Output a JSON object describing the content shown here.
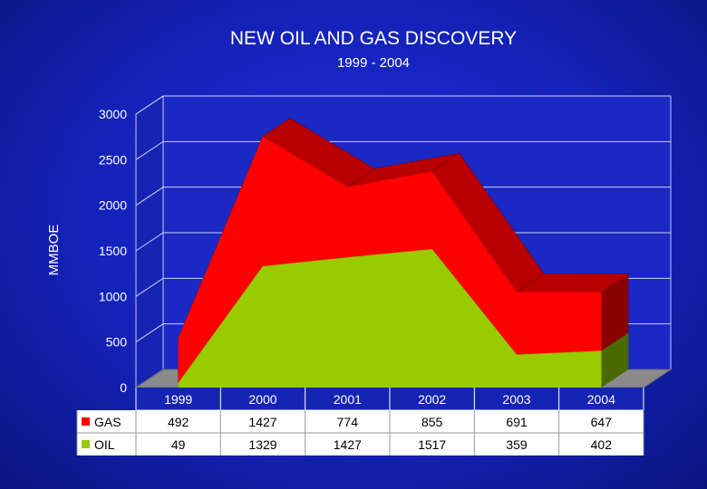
{
  "chart_data": {
    "type": "area",
    "title": "NEW OIL AND GAS DISCOVERY",
    "subtitle": "1999 - 2004",
    "ylabel": "MMBOE",
    "ylim": [
      0,
      3000
    ],
    "yticks": [
      "0",
      "500",
      "1000",
      "1500",
      "2000",
      "2500",
      "3000"
    ],
    "categories": [
      "1999",
      "2000",
      "2001",
      "2002",
      "2003",
      "2004"
    ],
    "stacked": true,
    "grid": true,
    "series": [
      {
        "name": "GAS",
        "values": [
          492,
          1427,
          774,
          855,
          691,
          647
        ],
        "color": "#ff0000",
        "label": "GAS"
      },
      {
        "name": "OIL",
        "values": [
          49,
          1329,
          1427,
          1517,
          359,
          402
        ],
        "color": "#99cc00",
        "label": "OIL"
      }
    ],
    "data_table": true
  },
  "colors": {
    "background": "#1422b8",
    "gas": "#ff0000",
    "gas_dark": "#b80000",
    "oil": "#99cc00",
    "oil_dark": "#4a6a00"
  }
}
